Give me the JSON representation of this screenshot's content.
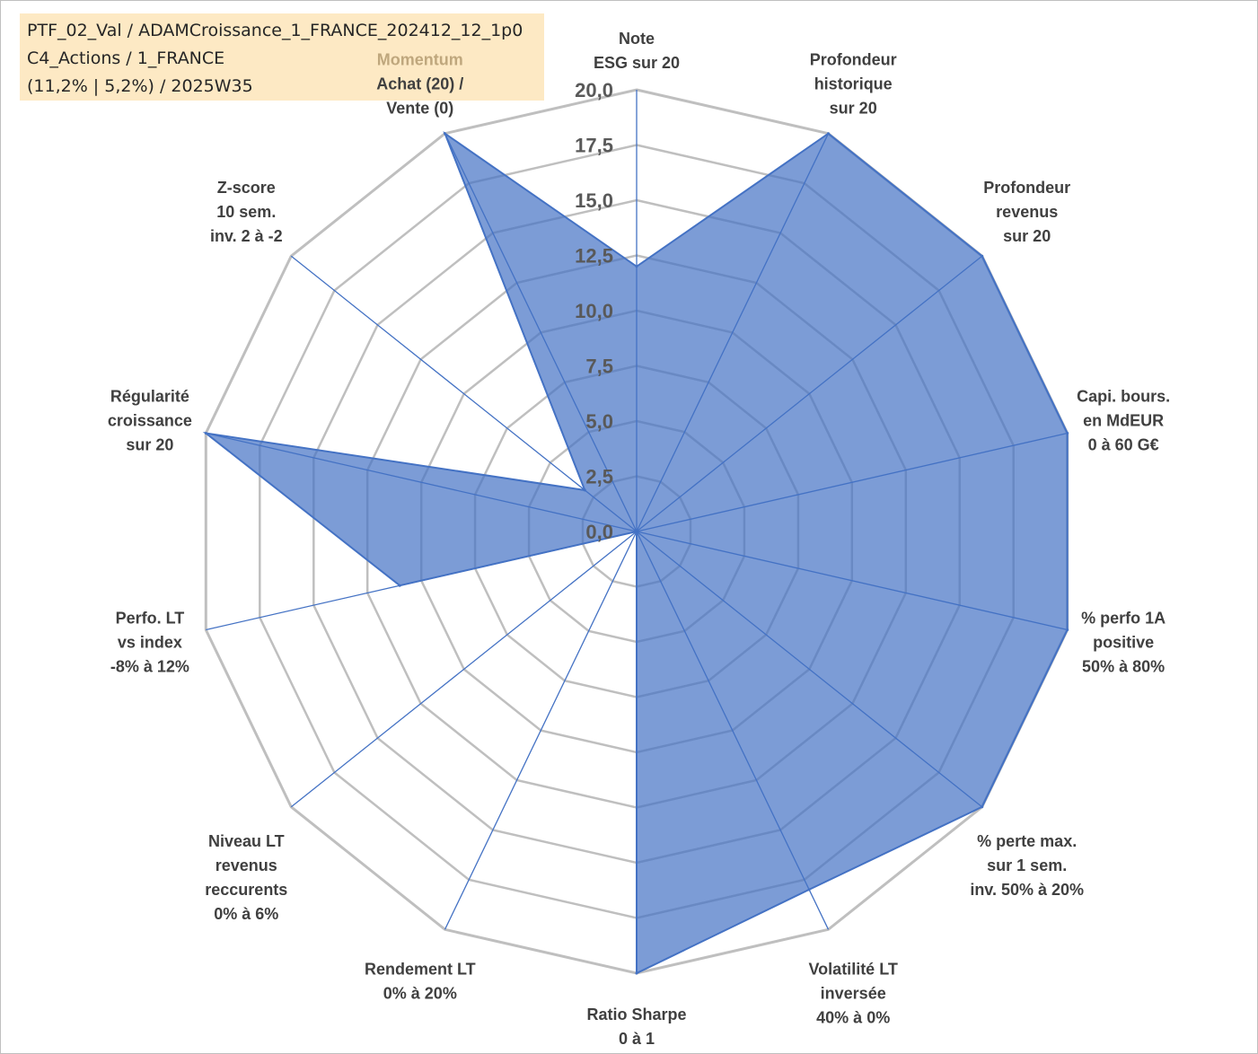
{
  "info_box": {
    "line1": "PTF_02_Val / ADAMCroissance_1_FRANCE_202412_12_1p0",
    "line2": "C4_Actions / 1_FRANCE",
    "line3": "(11,2% | 5,2%) / 2025W35"
  },
  "chart_data": {
    "type": "radar",
    "title": "",
    "r_range": [
      0,
      20
    ],
    "r_ticks": [
      "0,0",
      "2,5",
      "5,0",
      "7,5",
      "10,0",
      "12,5",
      "15,0",
      "17,5",
      "20,0"
    ],
    "grid": true,
    "categories": [
      {
        "lines": [
          "Note",
          "ESG sur 20"
        ]
      },
      {
        "lines": [
          "Profondeur",
          "historique",
          "sur 20"
        ]
      },
      {
        "lines": [
          "Profondeur",
          "revenus",
          "sur 20"
        ]
      },
      {
        "lines": [
          "Capi. bours.",
          "en MdEUR",
          "0 à 60 G€"
        ]
      },
      {
        "lines": [
          "% perfo 1A",
          "positive",
          "50% à 80%"
        ]
      },
      {
        "lines": [
          "% perte max.",
          "sur 1 sem.",
          "inv. 50% à 20%"
        ]
      },
      {
        "lines": [
          "Volatilité LT",
          "inversée",
          "40% à 0%"
        ]
      },
      {
        "lines": [
          "Ratio Sharpe",
          "0 à 1"
        ]
      },
      {
        "lines": [
          "Rendement LT",
          "0% à 20%"
        ]
      },
      {
        "lines": [
          "Niveau LT",
          "revenus",
          "reccurents",
          "0% à 6%"
        ]
      },
      {
        "lines": [
          "Perfo. LT",
          "vs index",
          "-8% à 12%"
        ]
      },
      {
        "lines": [
          "Régularité",
          "croissance",
          "sur 20"
        ]
      },
      {
        "lines": [
          "Z-score",
          "10 sem.",
          "inv. 2 à -2"
        ]
      },
      {
        "lines": [
          "Momentum",
          "Achat (20) /",
          "Vente (0)"
        ],
        "highlight_first_line": true
      }
    ],
    "series": [
      {
        "values": [
          12,
          20,
          20,
          20,
          20,
          20,
          18,
          20,
          0,
          0,
          11,
          20,
          3,
          20
        ],
        "color": "#4472c4"
      }
    ]
  }
}
